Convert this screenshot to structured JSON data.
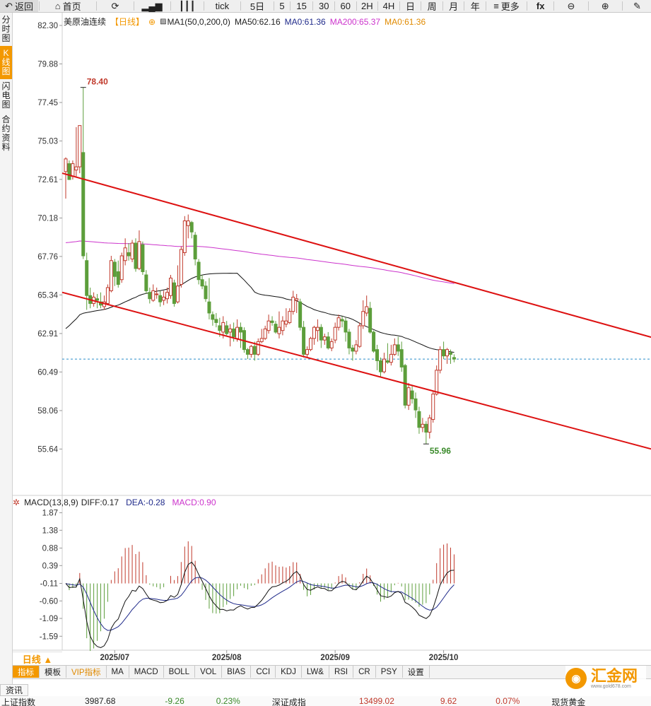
{
  "toolbar": {
    "items": [
      {
        "name": "back-button",
        "icon": "↶",
        "label": "返回"
      },
      {
        "name": "home-button",
        "icon": "⌂",
        "label": "首页"
      },
      {
        "name": "refresh-button",
        "icon": "⟳",
        "label": ""
      },
      {
        "name": "kline-icon-button",
        "icon": "▂▄▆",
        "label": ""
      },
      {
        "name": "candles-icon-button",
        "icon": "┃┃┃",
        "label": ""
      },
      {
        "name": "tick-button",
        "icon": "",
        "label": "tick"
      },
      {
        "name": "period-5day",
        "icon": "",
        "label": "5日"
      },
      {
        "name": "period-5",
        "icon": "",
        "label": "5"
      },
      {
        "name": "period-15",
        "icon": "",
        "label": "15"
      },
      {
        "name": "period-30",
        "icon": "",
        "label": "30"
      },
      {
        "name": "period-60",
        "icon": "",
        "label": "60"
      },
      {
        "name": "period-2h",
        "icon": "",
        "label": "2H"
      },
      {
        "name": "period-4h",
        "icon": "",
        "label": "4H"
      },
      {
        "name": "period-day",
        "icon": "",
        "label": "日"
      },
      {
        "name": "period-week",
        "icon": "",
        "label": "周"
      },
      {
        "name": "period-month",
        "icon": "",
        "label": "月"
      },
      {
        "name": "period-year",
        "icon": "",
        "label": "年"
      },
      {
        "name": "more-button",
        "icon": "≡",
        "label": "更多"
      },
      {
        "name": "formula-button",
        "icon": "fx",
        "label": ""
      },
      {
        "name": "zoom-out-button",
        "icon": "⊖",
        "label": ""
      },
      {
        "name": "zoom-in-button",
        "icon": "⊕",
        "label": ""
      },
      {
        "name": "draw-button",
        "icon": "✎",
        "label": ""
      }
    ]
  },
  "sidebar": {
    "items": [
      {
        "label": "分时图",
        "active": false
      },
      {
        "label": "K线图",
        "active": true
      },
      {
        "label": "闪电图",
        "active": false
      },
      {
        "label": "合约资料",
        "active": false
      }
    ]
  },
  "main_legend": {
    "title": "美原油连续",
    "period": "【日线】",
    "settings_icon": "⊕",
    "ma_group_icon": "▨",
    "ma1": "MA1(50,0,200,0)",
    "ma50": "MA50:62.16",
    "ma0_a": "MA0:61.36",
    "ma200": "MA200:65.37",
    "ma0_b": "MA0:61.36"
  },
  "macd_legend": {
    "name": "MACD(13,8,9)",
    "diff": "DIFF:0.17",
    "dea": "DEA:-0.28",
    "macd": "MACD:0.90",
    "icon": "✲"
  },
  "colors": {
    "up": "#c0392b",
    "down": "#5c9e3b",
    "ma50": "#111111",
    "ma200": "#cc33cc",
    "channel": "#dd1111",
    "last_price": "#2a8cc9",
    "macd_dea": "#1f2a8a",
    "macd_diff": "#111111",
    "ma0": "#e08a00"
  },
  "chart_data": [
    {
      "type": "candlestick",
      "title": "美原油连续",
      "y_ticks": [
        82.3,
        79.88,
        77.45,
        75.03,
        72.61,
        70.18,
        67.76,
        65.34,
        62.91,
        60.49,
        58.06,
        55.64
      ],
      "ylim": [
        53.3,
        83.1
      ],
      "x_ticks": [
        {
          "index": 14,
          "label": "2025/07"
        },
        {
          "index": 46,
          "label": "2025/08"
        },
        {
          "index": 77,
          "label": "2025/09"
        },
        {
          "index": 108,
          "label": "2025/10"
        }
      ],
      "high_label": "78.40",
      "low_label": "55.96",
      "last_price": 61.3,
      "candles": [
        [
          73.1,
          73.9,
          71.4,
          74.0
        ],
        [
          73.6,
          72.6,
          72.6,
          73.8
        ],
        [
          72.8,
          73.6,
          72.6,
          73.8
        ],
        [
          73.2,
          73.4,
          72.8,
          75.9
        ],
        [
          73.4,
          76.0,
          73.0,
          76.0
        ],
        [
          74.3,
          67.8,
          67.6,
          78.4
        ],
        [
          67.5,
          65.3,
          64.4,
          68.0
        ],
        [
          65.3,
          64.8,
          64.5,
          65.8
        ],
        [
          64.8,
          65.2,
          64.6,
          65.5
        ],
        [
          65.1,
          65.0,
          64.5,
          65.4
        ],
        [
          64.9,
          64.7,
          64.5,
          65.5
        ],
        [
          64.6,
          64.9,
          64.4,
          65.3
        ],
        [
          64.8,
          65.8,
          64.7,
          66.0
        ],
        [
          65.6,
          67.5,
          65.5,
          67.8
        ],
        [
          67.4,
          66.5,
          65.9,
          67.6
        ],
        [
          66.8,
          66.0,
          65.8,
          67.5
        ],
        [
          66.3,
          67.8,
          66.1,
          68.0
        ],
        [
          67.5,
          68.3,
          67.2,
          68.9
        ],
        [
          68.0,
          67.8,
          67.5,
          68.6
        ],
        [
          67.6,
          68.6,
          67.4,
          68.8
        ],
        [
          68.6,
          67.0,
          66.8,
          68.9
        ],
        [
          67.0,
          68.7,
          66.9,
          69.4
        ],
        [
          68.5,
          66.8,
          66.6,
          68.7
        ],
        [
          66.6,
          65.6,
          65.4,
          66.9
        ],
        [
          65.5,
          65.1,
          64.8,
          65.8
        ],
        [
          65.0,
          65.6,
          64.9,
          66.0
        ],
        [
          65.4,
          65.4,
          65.1,
          65.8
        ],
        [
          65.3,
          64.9,
          64.6,
          65.6
        ],
        [
          65.0,
          65.2,
          64.7,
          65.6
        ],
        [
          65.1,
          65.5,
          64.8,
          65.8
        ],
        [
          65.3,
          66.4,
          65.1,
          66.6
        ],
        [
          66.1,
          64.8,
          64.6,
          66.3
        ],
        [
          64.9,
          65.9,
          64.8,
          67.2
        ],
        [
          66.0,
          68.2,
          65.8,
          68.4
        ],
        [
          68.0,
          70.0,
          67.8,
          70.3
        ],
        [
          69.7,
          70.0,
          68.9,
          70.4
        ],
        [
          69.9,
          69.3,
          68.9,
          70.0
        ],
        [
          69.1,
          67.6,
          67.2,
          69.3
        ],
        [
          67.4,
          66.3,
          66.0,
          67.6
        ],
        [
          66.3,
          65.9,
          65.7,
          66.6
        ],
        [
          65.9,
          65.1,
          64.9,
          66.2
        ],
        [
          64.9,
          64.2,
          63.8,
          66.4
        ],
        [
          64.1,
          63.8,
          63.4,
          64.3
        ],
        [
          63.8,
          63.6,
          63.3,
          64.2
        ],
        [
          63.4,
          63.1,
          62.7,
          63.9
        ],
        [
          63.0,
          63.6,
          62.6,
          64.0
        ],
        [
          63.4,
          62.9,
          62.8,
          63.7
        ],
        [
          63.0,
          63.2,
          62.1,
          63.5
        ],
        [
          63.2,
          62.7,
          62.4,
          63.6
        ],
        [
          62.6,
          63.3,
          62.4,
          63.8
        ],
        [
          63.3,
          63.0,
          62.0,
          63.6
        ],
        [
          63.1,
          61.9,
          61.7,
          63.3
        ],
        [
          61.9,
          61.6,
          61.3,
          62.0
        ],
        [
          61.6,
          62.1,
          61.4,
          62.2
        ],
        [
          62.1,
          61.6,
          61.2,
          62.4
        ],
        [
          61.6,
          62.4,
          61.5,
          62.6
        ],
        [
          62.4,
          62.6,
          62.3,
          63.2
        ],
        [
          62.6,
          63.2,
          62.5,
          63.4
        ],
        [
          63.1,
          63.7,
          62.9,
          64.1
        ],
        [
          63.7,
          63.6,
          63.4,
          64.0
        ],
        [
          63.5,
          63.0,
          62.9,
          63.7
        ],
        [
          62.9,
          63.3,
          62.6,
          64.3
        ],
        [
          63.1,
          63.7,
          62.8,
          64.0
        ],
        [
          63.5,
          63.7,
          63.3,
          64.5
        ],
        [
          63.6,
          64.3,
          63.5,
          64.5
        ],
        [
          64.3,
          65.2,
          64.1,
          65.6
        ],
        [
          65.0,
          65.1,
          64.2,
          65.4
        ],
        [
          64.9,
          63.3,
          63.1,
          65.1
        ],
        [
          63.3,
          61.6,
          61.4,
          63.7
        ],
        [
          61.6,
          61.9,
          61.4,
          62.1
        ],
        [
          61.9,
          62.6,
          61.8,
          62.7
        ],
        [
          62.6,
          63.3,
          62.2,
          63.4
        ],
        [
          63.1,
          63.3,
          62.4,
          63.8
        ],
        [
          63.3,
          62.5,
          62.0,
          63.5
        ],
        [
          62.5,
          62.7,
          62.2,
          62.9
        ],
        [
          62.7,
          62.0,
          61.9,
          63.0
        ],
        [
          62.0,
          62.4,
          61.8,
          62.6
        ],
        [
          62.5,
          63.3,
          62.3,
          63.6
        ],
        [
          63.3,
          63.9,
          63.1,
          64.1
        ],
        [
          63.8,
          63.7,
          63.3,
          64.0
        ],
        [
          63.7,
          63.0,
          62.4,
          63.9
        ],
        [
          63.0,
          62.0,
          61.6,
          63.2
        ],
        [
          62.0,
          61.8,
          61.2,
          62.2
        ],
        [
          61.8,
          62.2,
          61.6,
          62.5
        ],
        [
          62.1,
          63.4,
          62.0,
          63.6
        ],
        [
          63.4,
          64.3,
          63.2,
          65.0
        ],
        [
          64.2,
          64.6,
          64.0,
          65.3
        ],
        [
          64.5,
          63.0,
          62.9,
          64.9
        ],
        [
          63.0,
          61.8,
          61.7,
          63.1
        ],
        [
          61.9,
          61.2,
          60.6,
          62.2
        ],
        [
          61.2,
          60.5,
          60.2,
          61.4
        ],
        [
          60.5,
          61.3,
          60.4,
          61.7
        ],
        [
          61.2,
          61.1,
          61.0,
          62.3
        ],
        [
          61.1,
          61.6,
          60.9,
          62.2
        ],
        [
          61.6,
          62.2,
          61.5,
          62.6
        ],
        [
          62.2,
          61.8,
          61.5,
          62.7
        ],
        [
          61.9,
          60.8,
          60.5,
          62.4
        ],
        [
          60.9,
          58.4,
          58.2,
          61.0
        ],
        [
          58.4,
          59.5,
          58.1,
          59.8
        ],
        [
          59.3,
          58.8,
          58.5,
          59.6
        ],
        [
          58.8,
          58.1,
          57.6,
          59.2
        ],
        [
          58.0,
          57.0,
          56.6,
          58.3
        ],
        [
          57.0,
          57.2,
          56.7,
          57.6
        ],
        [
          57.2,
          56.7,
          55.96,
          57.4
        ],
        [
          56.7,
          57.6,
          56.3,
          57.8
        ],
        [
          57.5,
          59.1,
          57.3,
          59.3
        ],
        [
          59.1,
          60.6,
          59.0,
          60.9
        ],
        [
          60.6,
          61.9,
          60.4,
          62.1
        ],
        [
          61.9,
          61.5,
          61.3,
          62.4
        ],
        [
          61.5,
          61.9,
          61.0,
          62.0
        ],
        [
          61.7,
          61.6,
          61.0,
          61.9
        ],
        [
          61.4,
          61.3,
          61.1,
          61.6
        ]
      ],
      "channel_upper": [
        [
          0,
          73.0
        ],
        [
          180,
          61.9
        ]
      ],
      "channel_lower": [
        [
          0,
          65.5
        ],
        [
          180,
          54.9
        ]
      ]
    },
    {
      "type": "macd",
      "y_ticks": [
        1.87,
        1.38,
        0.88,
        0.39,
        -0.11,
        -0.6,
        -1.09,
        -1.59
      ],
      "ylim": [
        -1.98,
        2.02
      ]
    }
  ],
  "period_badge": "日线 ▲",
  "tabs": [
    {
      "label": "指标",
      "active": true,
      "vip": false
    },
    {
      "label": "模板",
      "active": false,
      "vip": false
    },
    {
      "label": "VIP指标",
      "active": false,
      "vip": true
    },
    {
      "label": "MA",
      "active": false,
      "vip": false
    },
    {
      "label": "MACD",
      "active": false,
      "vip": false
    },
    {
      "label": "BOLL",
      "active": false,
      "vip": false
    },
    {
      "label": "VOL",
      "active": false,
      "vip": false
    },
    {
      "label": "BIAS",
      "active": false,
      "vip": false
    },
    {
      "label": "CCI",
      "active": false,
      "vip": false
    },
    {
      "label": "KDJ",
      "active": false,
      "vip": false
    },
    {
      "label": "LW&",
      "active": false,
      "vip": false
    },
    {
      "label": "RSI",
      "active": false,
      "vip": false
    },
    {
      "label": "CR",
      "active": false,
      "vip": false
    },
    {
      "label": "PSY",
      "active": false,
      "vip": false
    },
    {
      "label": "设置",
      "active": false,
      "vip": false
    }
  ],
  "news_tab": "资讯",
  "ticker": {
    "items": [
      {
        "label": "上证指数",
        "color": "#222"
      },
      {
        "label": "3987.68",
        "color": "#222"
      },
      {
        "label": "-9.26",
        "color": "#3a8a2a"
      },
      {
        "label": "0.23%",
        "color": "#3a8a2a"
      },
      {
        "label": "深证成指",
        "color": "#222"
      },
      {
        "label": "13499.02",
        "color": "#c0392b"
      },
      {
        "label": "9.62",
        "color": "#c0392b"
      },
      {
        "label": "0.07%",
        "color": "#c0392b"
      },
      {
        "label": "现货黄金",
        "color": "#222"
      }
    ]
  },
  "watermark": {
    "logo": "◉",
    "name": "汇金网",
    "url": "www.gold678.com"
  }
}
